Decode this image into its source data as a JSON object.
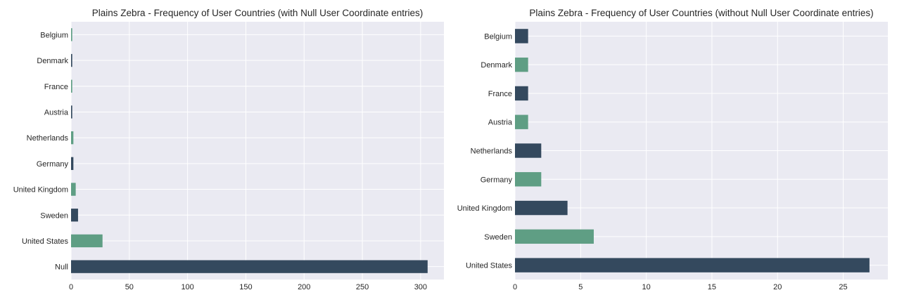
{
  "chart_data": [
    {
      "type": "bar",
      "orientation": "horizontal",
      "title": "Plains Zebra - Frequency of User Countries (with Null User Coordinate entries)",
      "categories": [
        "Belgium",
        "Denmark",
        "France",
        "Austria",
        "Netherlands",
        "Germany",
        "United Kingdom",
        "Sweden",
        "United States",
        "Null"
      ],
      "values": [
        1,
        1,
        1,
        1,
        2,
        2,
        4,
        6,
        27,
        306
      ],
      "xlim": [
        0,
        320
      ],
      "xticks": [
        0,
        50,
        100,
        150,
        200,
        250,
        300
      ],
      "grid": true,
      "colors": [
        "#5f9e84",
        "#34495e",
        "#5f9e84",
        "#34495e",
        "#5f9e84",
        "#34495e",
        "#5f9e84",
        "#34495e",
        "#5f9e84",
        "#34495e"
      ]
    },
    {
      "type": "bar",
      "orientation": "horizontal",
      "title": "Plains Zebra - Frequency of User Countries (without Null User Coordinate entries)",
      "categories": [
        "Belgium",
        "Denmark",
        "France",
        "Austria",
        "Netherlands",
        "Germany",
        "United Kingdom",
        "Sweden",
        "United States"
      ],
      "values": [
        1,
        1,
        1,
        1,
        2,
        2,
        4,
        6,
        27
      ],
      "xlim": [
        0,
        28.4
      ],
      "xticks": [
        0,
        5,
        10,
        15,
        20,
        25
      ],
      "grid": true,
      "colors": [
        "#34495e",
        "#5f9e84",
        "#34495e",
        "#5f9e84",
        "#34495e",
        "#5f9e84",
        "#34495e",
        "#5f9e84",
        "#34495e"
      ]
    }
  ],
  "theme": {
    "plot_background": "#eaeaf2",
    "grid_color": "#ffffff",
    "text_color": "#262626"
  }
}
